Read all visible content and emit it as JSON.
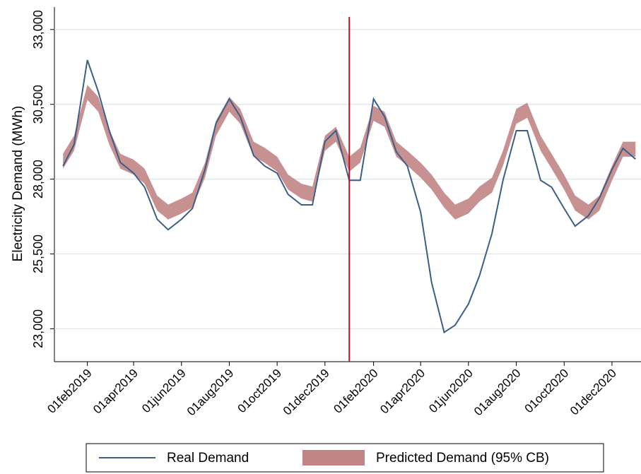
{
  "chart_data": {
    "type": "line-band",
    "y_label": "Electricity Demand (MWh)",
    "x": [
      "2019-01-01",
      "2019-01-15",
      "2019-02-01",
      "2019-02-15",
      "2019-03-01",
      "2019-03-15",
      "2019-04-01",
      "2019-04-15",
      "2019-05-01",
      "2019-05-15",
      "2019-06-01",
      "2019-06-15",
      "2019-07-01",
      "2019-07-15",
      "2019-08-01",
      "2019-08-15",
      "2019-09-01",
      "2019-09-15",
      "2019-10-01",
      "2019-10-15",
      "2019-11-01",
      "2019-11-15",
      "2019-12-01",
      "2019-12-15",
      "2020-01-01",
      "2020-01-15",
      "2020-02-01",
      "2020-02-15",
      "2020-03-01",
      "2020-03-15",
      "2020-04-01",
      "2020-04-15",
      "2020-05-01",
      "2020-05-15",
      "2020-06-01",
      "2020-06-15",
      "2020-07-01",
      "2020-07-15",
      "2020-08-01",
      "2020-08-15",
      "2020-09-01",
      "2020-09-15",
      "2020-10-01",
      "2020-10-15",
      "2020-11-01",
      "2020-11-15",
      "2020-12-01",
      "2020-12-15",
      "2020-12-31"
    ],
    "series": [
      {
        "name": "Real Demand",
        "color": "#3c5f85",
        "values": [
          28440,
          29150,
          31980,
          30920,
          29620,
          28560,
          28200,
          27730,
          26660,
          26310,
          26660,
          27020,
          28320,
          29860,
          30680,
          30090,
          28790,
          28440,
          28200,
          27490,
          27140,
          27140,
          29260,
          29620,
          27960,
          27960,
          30680,
          30090,
          28910,
          28440,
          26900,
          24540,
          22880,
          23120,
          23830,
          24770,
          26190,
          27960,
          29620,
          29620,
          27960,
          27730,
          27020,
          26430,
          26780,
          27370,
          28320,
          29030,
          28670
        ]
      },
      {
        "name": "Predicted Demand (95% CB)",
        "color": "#c28585",
        "lower": [
          28350,
          28950,
          30650,
          30250,
          29150,
          28350,
          28150,
          27850,
          26950,
          26650,
          26850,
          27050,
          28050,
          29450,
          30250,
          29850,
          28750,
          28550,
          28250,
          27650,
          27350,
          27250,
          28950,
          29250,
          28250,
          28550,
          29950,
          29750,
          28750,
          28450,
          28050,
          27650,
          27050,
          26650,
          26850,
          27250,
          27550,
          28450,
          29850,
          30050,
          28950,
          28350,
          27650,
          26950,
          26650,
          26950,
          27950,
          28750,
          28750
        ],
        "upper": [
          28850,
          29450,
          31150,
          30750,
          29650,
          28850,
          28650,
          28350,
          27450,
          27150,
          27350,
          27550,
          28550,
          29950,
          30750,
          30350,
          29250,
          29050,
          28750,
          28150,
          27850,
          27750,
          29450,
          29750,
          28750,
          29050,
          30450,
          30250,
          29250,
          28950,
          28550,
          28150,
          27550,
          27150,
          27350,
          27750,
          28050,
          28950,
          30350,
          30550,
          29450,
          28850,
          28150,
          27450,
          27150,
          27450,
          28450,
          29250,
          29250
        ]
      }
    ],
    "vline": {
      "x": "2020-01-01",
      "color": "#c0102a"
    },
    "xlim": [
      "2018-12-21",
      "2021-01-07"
    ],
    "xticks": [
      {
        "value": "2019-02-01",
        "label": "01feb2019"
      },
      {
        "value": "2019-04-01",
        "label": "01apr2019"
      },
      {
        "value": "2019-06-01",
        "label": "01jun2019"
      },
      {
        "value": "2019-08-01",
        "label": "01aug2019"
      },
      {
        "value": "2019-10-01",
        "label": "01oct2019"
      },
      {
        "value": "2019-12-01",
        "label": "01dec2019"
      },
      {
        "value": "2020-02-01",
        "label": "01feb2020"
      },
      {
        "value": "2020-04-01",
        "label": "01apr2020"
      },
      {
        "value": "2020-06-01",
        "label": "01jun2020"
      },
      {
        "value": "2020-08-01",
        "label": "01aug2020"
      },
      {
        "value": "2020-10-01",
        "label": "01oct2020"
      },
      {
        "value": "2020-12-01",
        "label": "01dec2020"
      }
    ],
    "ylim": [
      21900,
      33750
    ],
    "yticks": [
      {
        "value": 23000,
        "label": "23,000"
      },
      {
        "value": 25500,
        "label": "25,500"
      },
      {
        "value": 28000,
        "label": "28,000"
      },
      {
        "value": 30500,
        "label": "30,500"
      },
      {
        "value": 33000,
        "label": "33,000"
      }
    ],
    "grid": true,
    "legend": "bottom"
  }
}
